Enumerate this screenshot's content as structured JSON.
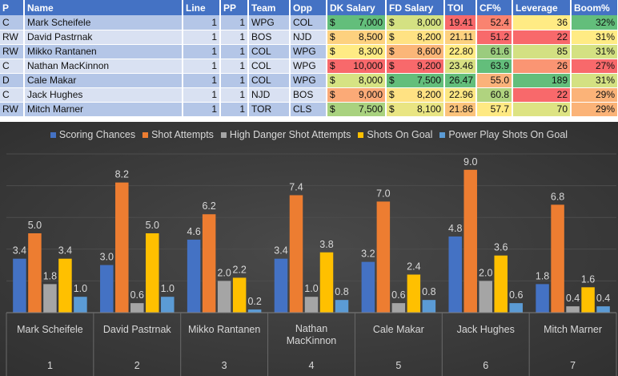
{
  "table": {
    "headers": [
      "P",
      "Name",
      "Line",
      "PP",
      "Team",
      "Opp",
      "DK Salary",
      "FD Salary",
      "TOI",
      "CF%",
      "Leverage",
      "Boom%"
    ],
    "currency_symbol": "$",
    "rows": [
      {
        "p": "C",
        "name": "Mark Scheifele",
        "line": "1",
        "pp": "1",
        "team": "WPG",
        "opp": "COL",
        "dk": "7,000",
        "fd": "8,000",
        "toi": "19.41",
        "cf": "52.4",
        "lev": "36",
        "boom": "32%",
        "colors": [
          "#63be7b",
          "#d4e182",
          "#f8696b",
          "#f98370",
          "#ffeb84",
          "#63be7b"
        ]
      },
      {
        "p": "RW",
        "name": "David Pastrnak",
        "line": "1",
        "pp": "1",
        "team": "BOS",
        "opp": "NJD",
        "dk": "8,500",
        "fd": "8,200",
        "toi": "21.11",
        "cf": "51.2",
        "lev": "22",
        "boom": "31%",
        "colors": [
          "#fdd17f",
          "#ffe283",
          "#fdd17f",
          "#f8696b",
          "#f8696b",
          "#ffeb84"
        ]
      },
      {
        "p": "RW",
        "name": "Mikko Rantanen",
        "line": "1",
        "pp": "1",
        "team": "COL",
        "opp": "WPG",
        "dk": "8,300",
        "fd": "8,600",
        "toi": "22.80",
        "cf": "61.6",
        "lev": "85",
        "boom": "31%",
        "colors": [
          "#ffeb84",
          "#fbb678",
          "#ffeb84",
          "#9bcc7e",
          "#d3e082",
          "#d4e182"
        ]
      },
      {
        "p": "C",
        "name": "Nathan MacKinnon",
        "line": "1",
        "pp": "1",
        "team": "COL",
        "opp": "WPG",
        "dk": "10,000",
        "fd": "9,200",
        "toi": "23.46",
        "cf": "63.9",
        "lev": "26",
        "boom": "27%",
        "colors": [
          "#f8696b",
          "#f8696b",
          "#d8e082",
          "#63be7b",
          "#fa9573",
          "#f8696b"
        ]
      },
      {
        "p": "D",
        "name": "Cale Makar",
        "line": "1",
        "pp": "1",
        "team": "COL",
        "opp": "WPG",
        "dk": "8,000",
        "fd": "7,500",
        "toi": "26.47",
        "cf": "55.0",
        "lev": "189",
        "boom": "31%",
        "colors": [
          "#d6e383",
          "#63be7b",
          "#63be7b",
          "#fbb27a",
          "#63be7b",
          "#d4e182"
        ]
      },
      {
        "p": "C",
        "name": "Jack Hughes",
        "line": "1",
        "pp": "1",
        "team": "NJD",
        "opp": "BOS",
        "dk": "9,000",
        "fd": "8,200",
        "toi": "22.96",
        "cf": "60.8",
        "lev": "22",
        "boom": "29%",
        "colors": [
          "#fbaa77",
          "#ffe283",
          "#fde783",
          "#b0d37f",
          "#f8696b",
          "#fbb378"
        ]
      },
      {
        "p": "RW",
        "name": "Mitch Marner",
        "line": "1",
        "pp": "1",
        "team": "TOR",
        "opp": "CLS",
        "dk": "7,500",
        "fd": "8,100",
        "toi": "21.86",
        "cf": "57.7",
        "lev": "70",
        "boom": "29%",
        "colors": [
          "#a9d27f",
          "#e9e583",
          "#fbc37b",
          "#fee983",
          "#dde383",
          "#fbb378"
        ]
      }
    ]
  },
  "chart_data": {
    "type": "bar",
    "categories": [
      "Mark Scheifele",
      "David Pastrnak",
      "Mikko Rantanen",
      "Nathan MacKinnon",
      "Cale Makar",
      "Jack Hughes",
      "Mitch Marner"
    ],
    "category_numbers": [
      "1",
      "2",
      "3",
      "4",
      "5",
      "6",
      "7"
    ],
    "ylim": [
      0,
      10
    ],
    "legend_position": "top",
    "series": [
      {
        "name": "Scoring Chances",
        "color": "#4472c4",
        "values": [
          3.4,
          3.0,
          4.6,
          3.4,
          3.2,
          4.8,
          1.8
        ]
      },
      {
        "name": "Shot Attempts",
        "color": "#ed7d31",
        "values": [
          5.0,
          8.2,
          6.2,
          7.4,
          7.0,
          9.0,
          6.8
        ]
      },
      {
        "name": "High Danger Shot Attempts",
        "color": "#a5a5a5",
        "values": [
          1.8,
          0.6,
          2.0,
          1.0,
          0.6,
          2.0,
          0.4
        ]
      },
      {
        "name": "Shots On Goal",
        "color": "#ffc000",
        "values": [
          3.4,
          5.0,
          2.2,
          3.8,
          2.4,
          3.6,
          1.6
        ]
      },
      {
        "name": "Power Play Shots On Goal",
        "color": "#5b9bd5",
        "values": [
          1.0,
          1.0,
          0.2,
          0.8,
          0.8,
          0.6,
          0.4
        ]
      }
    ]
  }
}
